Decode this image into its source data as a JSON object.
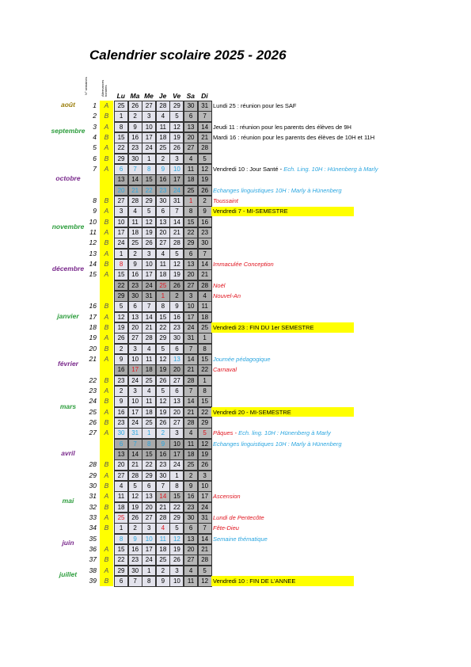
{
  "header": {
    "title": "Calendrier scolaire  2025 - 2026",
    "week_label": "N° semaines",
    "alt_label": "Alternances horaires",
    "days": [
      "Lu",
      "Ma",
      "Me",
      "Je",
      "Ve",
      "Sa",
      "Di"
    ]
  },
  "months": [
    "août",
    "septembre",
    "octobre",
    "novembre",
    "décembre",
    "janvier",
    "février",
    "mars",
    "avril",
    "mai",
    "juin",
    "juillet"
  ],
  "rows": [
    {
      "week": 1,
      "ab": "A",
      "days": [
        25,
        26,
        27,
        28,
        29,
        30,
        31
      ],
      "note": [
        {
          "text": "Lundi 25 : réunion pour les SAF",
          "color": "black"
        }
      ]
    },
    {
      "week": 2,
      "ab": "B",
      "days": [
        1,
        2,
        3,
        4,
        5,
        6,
        7
      ]
    },
    {
      "week": 3,
      "ab": "A",
      "days": [
        8,
        9,
        10,
        11,
        12,
        13,
        14
      ],
      "note": [
        {
          "text": "Jeudi 11 : réunion pour les parents des élèves de 9H",
          "color": "black"
        }
      ]
    },
    {
      "week": 4,
      "ab": "B",
      "days": [
        15,
        16,
        17,
        18,
        19,
        20,
        21
      ],
      "note": [
        {
          "text": "Mardi 16 : réunion pour les parents des élèves de 10H et 11H",
          "color": "black"
        }
      ]
    },
    {
      "week": 5,
      "ab": "A",
      "days": [
        22,
        23,
        24,
        25,
        26,
        27,
        28
      ]
    },
    {
      "week": 6,
      "ab": "B",
      "days": [
        29,
        30,
        1,
        2,
        3,
        4,
        5
      ]
    },
    {
      "week": 7,
      "ab": "A",
      "days": [
        6,
        7,
        8,
        9,
        10,
        11,
        12
      ],
      "blue": [
        0,
        1,
        2,
        3,
        4
      ],
      "note": [
        {
          "text": "Vendredi 10 : Jour Santé - ",
          "color": "black"
        },
        {
          "text": "Ech. Ling. 10H : Hünenberg à Marly",
          "color": "blue"
        }
      ]
    },
    {
      "holiday": true,
      "days": [
        13,
        14,
        15,
        16,
        17,
        18,
        19
      ]
    },
    {
      "holiday": true,
      "days": [
        20,
        21,
        22,
        23,
        24,
        25,
        26
      ],
      "blue": [
        0,
        1,
        2,
        3,
        4
      ],
      "note": [
        {
          "text": "Echanges linguistiques 10H : Marly à Hünenberg",
          "color": "blue"
        }
      ]
    },
    {
      "week": 8,
      "ab": "B",
      "days": [
        27,
        28,
        29,
        30,
        31,
        1,
        2
      ],
      "red": [
        5
      ],
      "note": [
        {
          "text": "Toussaint",
          "color": "red"
        }
      ]
    },
    {
      "week": 9,
      "ab": "A",
      "days": [
        3,
        4,
        5,
        6,
        7,
        8,
        9
      ],
      "highlight": true,
      "note": [
        {
          "text": "Vendredi 7 - MI-SEMESTRE",
          "color": "black"
        }
      ]
    },
    {
      "week": 10,
      "ab": "B",
      "days": [
        10,
        11,
        12,
        13,
        14,
        15,
        16
      ]
    },
    {
      "week": 11,
      "ab": "A",
      "days": [
        17,
        18,
        19,
        20,
        21,
        22,
        23
      ]
    },
    {
      "week": 12,
      "ab": "B",
      "days": [
        24,
        25,
        26,
        27,
        28,
        29,
        30
      ]
    },
    {
      "week": 13,
      "ab": "A",
      "days": [
        1,
        2,
        3,
        4,
        5,
        6,
        7
      ]
    },
    {
      "week": 14,
      "ab": "B",
      "days": [
        8,
        9,
        10,
        11,
        12,
        13,
        14
      ],
      "red": [
        0
      ],
      "note": [
        {
          "text": "Immaculée Conception",
          "color": "red"
        }
      ]
    },
    {
      "week": 15,
      "ab": "A",
      "days": [
        15,
        16,
        17,
        18,
        19,
        20,
        21
      ]
    },
    {
      "holiday": true,
      "days": [
        22,
        23,
        24,
        25,
        26,
        27,
        28
      ],
      "red": [
        3
      ],
      "note": [
        {
          "text": "Noël",
          "color": "red"
        }
      ]
    },
    {
      "holiday": true,
      "days": [
        29,
        30,
        31,
        1,
        2,
        3,
        4
      ],
      "red": [
        3
      ],
      "note": [
        {
          "text": "Nouvel-An",
          "color": "red"
        }
      ]
    },
    {
      "week": 16,
      "ab": "B",
      "days": [
        5,
        6,
        7,
        8,
        9,
        10,
        11
      ]
    },
    {
      "week": 17,
      "ab": "A",
      "days": [
        12,
        13,
        14,
        15,
        16,
        17,
        18
      ]
    },
    {
      "week": 18,
      "ab": "B",
      "days": [
        19,
        20,
        21,
        22,
        23,
        24,
        25
      ],
      "highlight": true,
      "note": [
        {
          "text": "Vendredi 23 : FIN DU 1er SEMESTRE",
          "color": "black"
        }
      ]
    },
    {
      "week": 19,
      "ab": "A",
      "days": [
        26,
        27,
        28,
        29,
        30,
        31,
        1
      ]
    },
    {
      "week": 20,
      "ab": "B",
      "days": [
        2,
        3,
        4,
        5,
        6,
        7,
        8
      ]
    },
    {
      "week": 21,
      "ab": "A",
      "days": [
        9,
        10,
        11,
        12,
        13,
        14,
        15
      ],
      "blue": [
        4
      ],
      "note": [
        {
          "text": "Journée pédagogique",
          "color": "blue"
        }
      ]
    },
    {
      "holiday": true,
      "days": [
        16,
        17,
        18,
        19,
        20,
        21,
        22
      ],
      "red": [
        1
      ],
      "note": [
        {
          "text": "Carnaval",
          "color": "red"
        }
      ]
    },
    {
      "week": 22,
      "ab": "B",
      "days": [
        23,
        24,
        25,
        26,
        27,
        28,
        1
      ]
    },
    {
      "week": 23,
      "ab": "A",
      "days": [
        2,
        3,
        4,
        5,
        6,
        7,
        8
      ]
    },
    {
      "week": 24,
      "ab": "B",
      "days": [
        9,
        10,
        11,
        12,
        13,
        14,
        15
      ]
    },
    {
      "week": 25,
      "ab": "A",
      "days": [
        16,
        17,
        18,
        19,
        20,
        21,
        22
      ],
      "highlight": true,
      "note": [
        {
          "text": "Vendredi 20 - MI-SEMESTRE",
          "color": "black"
        }
      ]
    },
    {
      "week": 26,
      "ab": "B",
      "days": [
        23,
        24,
        25,
        26,
        27,
        28,
        29
      ]
    },
    {
      "week": 27,
      "ab": "A",
      "days": [
        30,
        31,
        1,
        2,
        3,
        4,
        5
      ],
      "blue": [
        0,
        1,
        2,
        3
      ],
      "red": [
        6
      ],
      "note": [
        {
          "text": "Pâques - ",
          "color": "red"
        },
        {
          "text": "Ech. ling. 10H : Hünenberg à Marly",
          "color": "blue"
        }
      ]
    },
    {
      "holiday": true,
      "days": [
        6,
        7,
        8,
        9,
        10,
        11,
        12
      ],
      "blue": [
        0,
        1,
        2,
        3
      ],
      "note": [
        {
          "text": "Echanges linguistiques 10H : Marly à Hünenberg",
          "color": "blue"
        }
      ]
    },
    {
      "holiday": true,
      "days": [
        13,
        14,
        15,
        16,
        17,
        18,
        19
      ]
    },
    {
      "week": 28,
      "ab": "B",
      "days": [
        20,
        21,
        22,
        23,
        24,
        25,
        26
      ]
    },
    {
      "week": 29,
      "ab": "A",
      "days": [
        27,
        28,
        29,
        30,
        1,
        2,
        3
      ]
    },
    {
      "week": 30,
      "ab": "B",
      "days": [
        4,
        5,
        6,
        7,
        8,
        9,
        10
      ]
    },
    {
      "week": 31,
      "ab": "A",
      "days": [
        11,
        12,
        13,
        14,
        15,
        16,
        17
      ],
      "red": [
        3
      ],
      "off": [
        3,
        4
      ],
      "note": [
        {
          "text": "Ascension",
          "color": "red"
        }
      ]
    },
    {
      "week": 32,
      "ab": "B",
      "days": [
        18,
        19,
        20,
        21,
        22,
        23,
        24
      ]
    },
    {
      "week": 33,
      "ab": "A",
      "days": [
        25,
        26,
        27,
        28,
        29,
        30,
        31
      ],
      "red": [
        0
      ],
      "note": [
        {
          "text": "Lundi de Pentecôte",
          "color": "red"
        }
      ]
    },
    {
      "week": 34,
      "ab": "B",
      "days": [
        1,
        2,
        3,
        4,
        5,
        6,
        7
      ],
      "red": [
        3
      ],
      "note": [
        {
          "text": "Fête-Dieu",
          "color": "red"
        }
      ]
    },
    {
      "week": 35,
      "days": [
        8,
        9,
        10,
        11,
        12,
        13,
        14
      ],
      "blue": [
        0,
        1,
        2,
        3,
        4
      ],
      "note": [
        {
          "text": "Semaine thématique",
          "color": "blue"
        }
      ]
    },
    {
      "week": 36,
      "ab": "A",
      "days": [
        15,
        16,
        17,
        18,
        19,
        20,
        21
      ]
    },
    {
      "week": 37,
      "ab": "B",
      "days": [
        22,
        23,
        24,
        25,
        26,
        27,
        28
      ]
    },
    {
      "week": 38,
      "ab": "A",
      "days": [
        29,
        30,
        1,
        2,
        3,
        4,
        5
      ]
    },
    {
      "week": 39,
      "ab": "B",
      "days": [
        6,
        7,
        8,
        9,
        10,
        11,
        12
      ],
      "highlight": true,
      "note": [
        {
          "text": "Vendredi 10 : FIN DE L'ANNEE",
          "color": "black"
        }
      ]
    }
  ]
}
